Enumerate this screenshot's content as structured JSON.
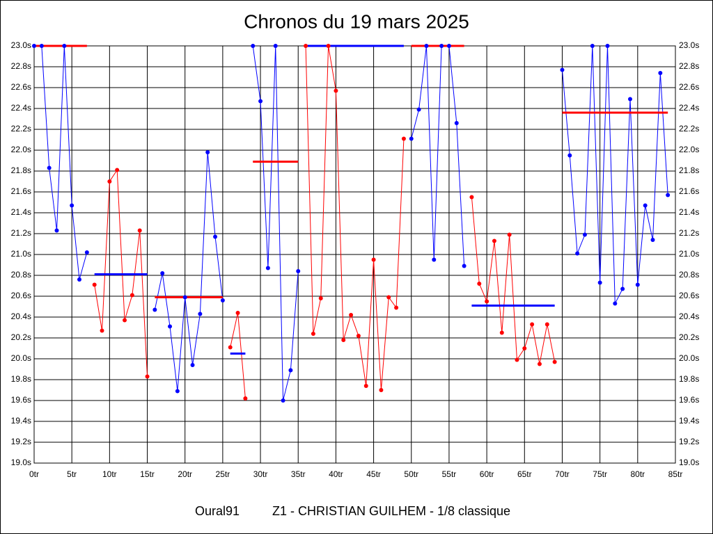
{
  "chart_data": {
    "type": "line",
    "title": "Chronos du 19 mars 2025",
    "footer_left": "Oural91",
    "footer_right": "Z1 - CHRISTIAN GUILHEM - 1/8 classique",
    "xlim": [
      0,
      85
    ],
    "ylim": [
      19.0,
      23.0
    ],
    "grid": true,
    "xticks": [
      {
        "value": 0,
        "label": "0tr"
      },
      {
        "value": 5,
        "label": "5tr"
      },
      {
        "value": 10,
        "label": "10tr"
      },
      {
        "value": 15,
        "label": "15tr"
      },
      {
        "value": 20,
        "label": "20tr"
      },
      {
        "value": 25,
        "label": "25tr"
      },
      {
        "value": 30,
        "label": "30tr"
      },
      {
        "value": 35,
        "label": "35tr"
      },
      {
        "value": 40,
        "label": "40tr"
      },
      {
        "value": 45,
        "label": "45tr"
      },
      {
        "value": 50,
        "label": "50tr"
      },
      {
        "value": 55,
        "label": "55tr"
      },
      {
        "value": 60,
        "label": "60tr"
      },
      {
        "value": 65,
        "label": "65tr"
      },
      {
        "value": 70,
        "label": "70tr"
      },
      {
        "value": 75,
        "label": "75tr"
      },
      {
        "value": 80,
        "label": "80tr"
      },
      {
        "value": 85,
        "label": "85tr"
      }
    ],
    "yticks": [
      {
        "value": 19.0,
        "label": "19.0s"
      },
      {
        "value": 19.2,
        "label": "19.2s"
      },
      {
        "value": 19.4,
        "label": "19.4s"
      },
      {
        "value": 19.6,
        "label": "19.6s"
      },
      {
        "value": 19.8,
        "label": "19.8s"
      },
      {
        "value": 20.0,
        "label": "20.0s"
      },
      {
        "value": 20.2,
        "label": "20.2s"
      },
      {
        "value": 20.4,
        "label": "20.4s"
      },
      {
        "value": 20.6,
        "label": "20.6s"
      },
      {
        "value": 20.8,
        "label": "20.8s"
      },
      {
        "value": 21.0,
        "label": "21.0s"
      },
      {
        "value": 21.2,
        "label": "21.2s"
      },
      {
        "value": 21.4,
        "label": "21.4s"
      },
      {
        "value": 21.6,
        "label": "21.6s"
      },
      {
        "value": 21.8,
        "label": "21.8s"
      },
      {
        "value": 22.0,
        "label": "22.0s"
      },
      {
        "value": 22.2,
        "label": "22.2s"
      },
      {
        "value": 22.4,
        "label": "22.4s"
      },
      {
        "value": 22.6,
        "label": "22.6s"
      },
      {
        "value": 22.8,
        "label": "22.8s"
      },
      {
        "value": 23.0,
        "label": "23.0s"
      }
    ],
    "segments": [
      {
        "color": "#0000ff",
        "mean_color": "#ff0000",
        "x": [
          0,
          1,
          2,
          3,
          4,
          5,
          6,
          7
        ],
        "values": [
          23.0,
          23.0,
          21.83,
          21.23,
          23.0,
          21.47,
          20.76,
          21.02
        ],
        "mean": 23.0
      },
      {
        "color": "#ff0000",
        "mean_color": "#0000ff",
        "x": [
          8,
          9,
          10,
          11,
          12,
          13,
          14,
          15
        ],
        "values": [
          20.71,
          20.27,
          21.7,
          21.81,
          20.37,
          20.61,
          21.23,
          19.83
        ],
        "mean": 20.81
      },
      {
        "color": "#0000ff",
        "mean_color": "#ff0000",
        "x": [
          16,
          17,
          18,
          19,
          20,
          21,
          22,
          23,
          24,
          25
        ],
        "values": [
          20.47,
          20.82,
          20.31,
          19.69,
          20.59,
          19.94,
          20.43,
          21.98,
          21.17,
          20.56
        ],
        "mean": 20.59
      },
      {
        "color": "#ff0000",
        "mean_color": "#0000ff",
        "x": [
          26,
          27,
          28
        ],
        "values": [
          20.11,
          20.44,
          19.62
        ],
        "mean": 20.05
      },
      {
        "color": "#0000ff",
        "mean_color": "#ff0000",
        "x": [
          29,
          30,
          31,
          32,
          33,
          34,
          35
        ],
        "values": [
          23.0,
          22.47,
          20.87,
          23.0,
          19.6,
          19.89,
          20.84
        ],
        "mean": 21.89
      },
      {
        "color": "#ff0000",
        "mean_color": "#0000ff",
        "x": [
          36,
          37,
          38,
          39,
          40,
          41,
          42,
          43,
          44,
          45,
          46,
          47,
          48,
          49
        ],
        "values": [
          23.0,
          20.24,
          20.58,
          23.0,
          22.57,
          20.18,
          20.42,
          20.22,
          19.74,
          20.95,
          19.7,
          20.59,
          20.49,
          22.11
        ],
        "mean": 23.0
      },
      {
        "color": "#0000ff",
        "mean_color": "#ff0000",
        "x": [
          50,
          51,
          52,
          53,
          54,
          55,
          56,
          57
        ],
        "values": [
          22.11,
          22.39,
          23.0,
          20.95,
          23.0,
          23.0,
          22.26,
          20.89
        ],
        "mean": 23.0
      },
      {
        "color": "#ff0000",
        "mean_color": "#0000ff",
        "x": [
          58,
          59,
          60,
          61,
          62,
          63,
          64,
          65,
          66,
          67,
          68,
          69
        ],
        "values": [
          21.55,
          20.72,
          20.55,
          21.13,
          20.25,
          21.19,
          19.99,
          20.1,
          20.33,
          19.95,
          20.33,
          19.97
        ],
        "mean": 20.51
      },
      {
        "color": "#0000ff",
        "mean_color": "#ff0000",
        "x": [
          70,
          71,
          72,
          73,
          74,
          75,
          76,
          77,
          78,
          79,
          80,
          81,
          82,
          83,
          84
        ],
        "values": [
          22.77,
          21.95,
          21.01,
          21.19,
          23.0,
          20.73,
          23.0,
          20.53,
          20.67,
          22.49,
          20.71,
          21.47,
          21.14,
          22.74,
          21.57
        ],
        "mean": 22.36
      }
    ]
  }
}
